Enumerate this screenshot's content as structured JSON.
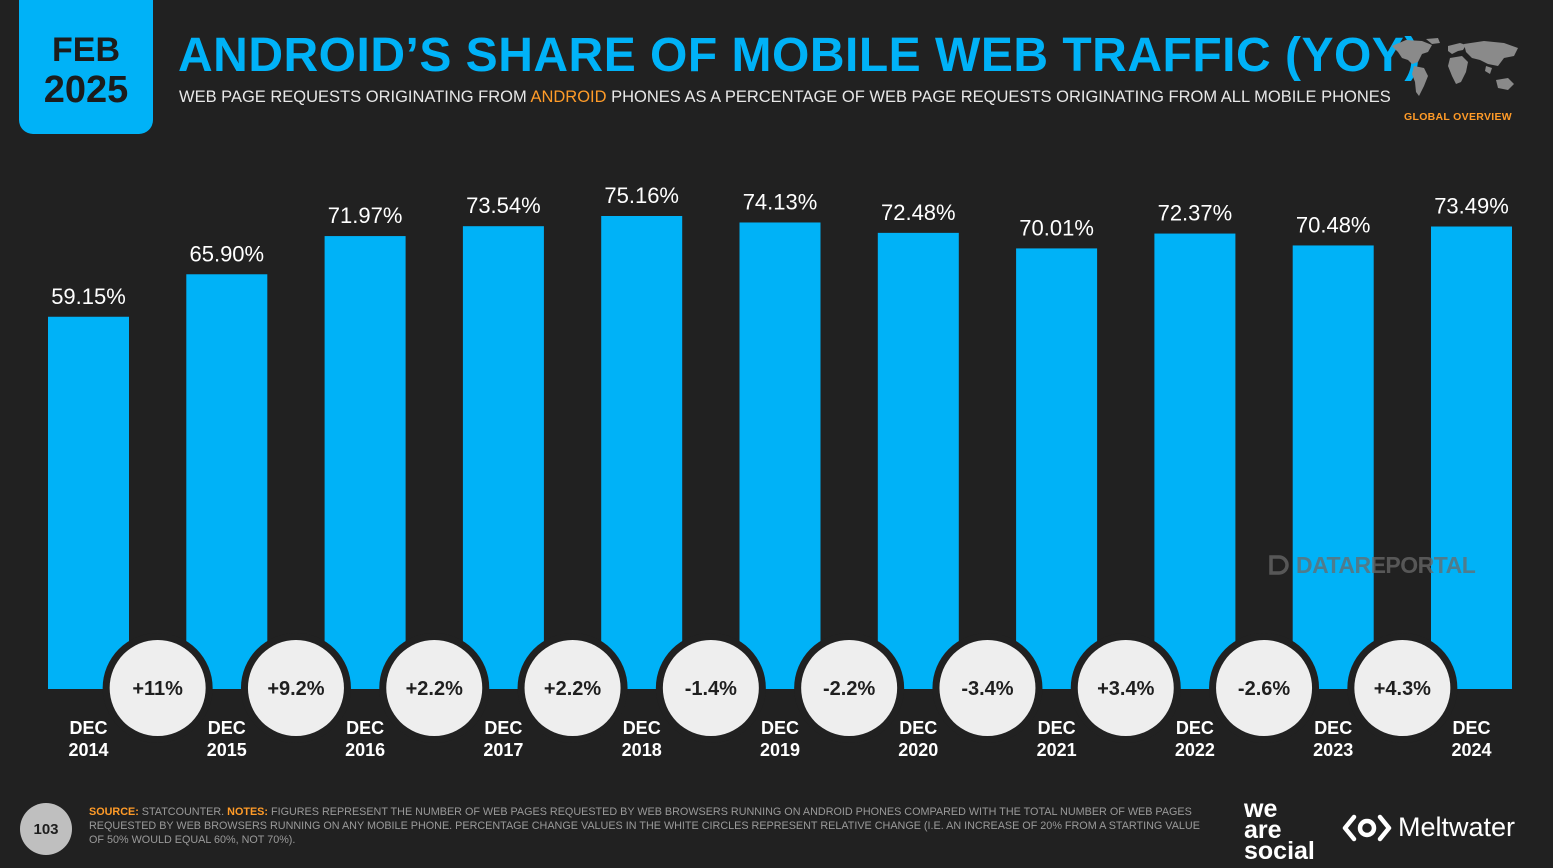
{
  "header": {
    "month": "FEB",
    "year": "2025",
    "title": "ANDROID’S SHARE OF MOBILE WEB TRAFFIC (YOY)",
    "subtitle_pre": "WEB PAGE REQUESTS ORIGINATING FROM ",
    "subtitle_highlight": "ANDROID",
    "subtitle_post": " PHONES AS A PERCENTAGE OF WEB PAGE REQUESTS ORIGINATING FROM ALL MOBILE PHONES",
    "region_label": "GLOBAL OVERVIEW"
  },
  "colors": {
    "background": "#212121",
    "accent": "#00b2f7",
    "highlight": "#ff9b28",
    "circle": "#eeeeee"
  },
  "icons": {
    "map": "world-map-icon",
    "watermark": "datareportal-logo-icon",
    "brand": "meltwater-logo-icon"
  },
  "chart_data": {
    "type": "bar",
    "categories": [
      [
        "DEC",
        "2014"
      ],
      [
        "DEC",
        "2015"
      ],
      [
        "DEC",
        "2016"
      ],
      [
        "DEC",
        "2017"
      ],
      [
        "DEC",
        "2018"
      ],
      [
        "DEC",
        "2019"
      ],
      [
        "DEC",
        "2020"
      ],
      [
        "DEC",
        "2021"
      ],
      [
        "DEC",
        "2022"
      ],
      [
        "DEC",
        "2023"
      ],
      [
        "DEC",
        "2024"
      ]
    ],
    "values": [
      59.15,
      65.9,
      71.97,
      73.54,
      75.16,
      74.13,
      72.48,
      70.01,
      72.37,
      70.48,
      73.49
    ],
    "value_labels": [
      "59.15%",
      "65.90%",
      "71.97%",
      "73.54%",
      "75.16%",
      "74.13%",
      "72.48%",
      "70.01%",
      "72.37%",
      "70.48%",
      "73.49%"
    ],
    "changes": [
      "+11%",
      "+9.2%",
      "+2.2%",
      "+2.2%",
      "-1.4%",
      "-2.2%",
      "-3.4%",
      "+3.4%",
      "-2.6%",
      "+4.3%"
    ],
    "ylim": [
      0,
      75.16
    ],
    "grid": false,
    "legend": "none"
  },
  "watermark": {
    "text": "DATAREPORTAL"
  },
  "footer": {
    "page_number": "103",
    "source_label": "SOURCE:",
    "source_text": " STATCOUNTER. ",
    "notes_label": "NOTES:",
    "notes_text": " FIGURES REPRESENT THE NUMBER OF WEB PAGES REQUESTED BY WEB BROWSERS RUNNING ON ANDROID PHONES COMPARED WITH THE TOTAL NUMBER OF WEB PAGES REQUESTED BY WEB BROWSERS RUNNING ON ANY MOBILE PHONE. PERCENTAGE CHANGE VALUES IN THE WHITE CIRCLES REPRESENT RELATIVE CHANGE (I.E. AN INCREASE OF 20% FROM A STARTING VALUE OF 50% WOULD EQUAL 60%, NOT 70%).",
    "brand_line1": "we",
    "brand_line2": "are",
    "brand_line3": "social",
    "brand2": "Meltwater"
  }
}
